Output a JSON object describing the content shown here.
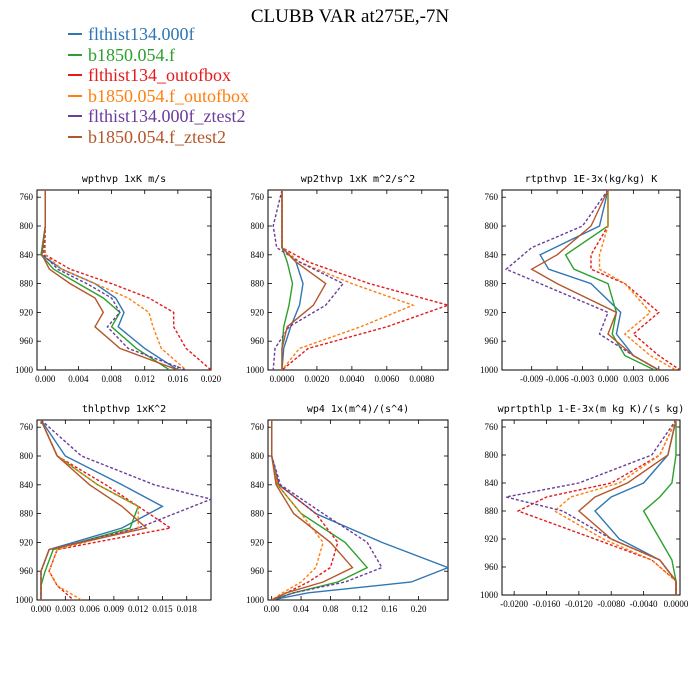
{
  "title": "CLUBB VAR at275E,-7N",
  "legend": [
    {
      "name": "flthist134.000f",
      "color": "#2f77b4",
      "dash": "solid"
    },
    {
      "name": "b1850.054.f",
      "color": "#2ca02c",
      "dash": "solid"
    },
    {
      "name": "flthist134_outofbox",
      "color": "#e41a1c",
      "dash": "dashed"
    },
    {
      "name": "b1850.054.f_outofbox",
      "color": "#ff7f0e",
      "dash": "dashed"
    },
    {
      "name": "flthist134.000f_ztest2",
      "color": "#6a3d9a",
      "dash": "dashed"
    },
    {
      "name": "b1850.054.f_ztest2",
      "color": "#b5562a",
      "dash": "solid"
    }
  ],
  "chart_data": [
    {
      "type": "line",
      "title": "wpthvp  1xK m/s",
      "xlim": [
        -0.001,
        0.02
      ],
      "ylim": [
        1000,
        750
      ],
      "xticks": [
        "0.000",
        "0.004",
        "0.008",
        "0.012",
        "0.016",
        "0.020"
      ],
      "xtick_values": [
        0,
        0.004,
        0.008,
        0.012,
        0.016,
        0.02
      ],
      "yticks": [
        760,
        800,
        840,
        880,
        920,
        960,
        1000
      ],
      "series": [
        {
          "name": "flthist134.000f",
          "x": [
            0,
            0,
            -0.0005,
            0.002,
            0.006,
            0.0085,
            0.0095,
            0.0088,
            0.012,
            0.016
          ],
          "y": [
            750,
            800,
            840,
            860,
            880,
            900,
            920,
            940,
            970,
            1000
          ]
        },
        {
          "name": "b1850.054.f",
          "x": [
            0,
            0,
            -0.0005,
            0.001,
            0.004,
            0.007,
            0.009,
            0.008,
            0.011,
            0.015
          ],
          "y": [
            750,
            800,
            840,
            860,
            880,
            900,
            920,
            940,
            970,
            1000
          ]
        },
        {
          "name": "flthist134_outofbox",
          "x": [
            0,
            0,
            0,
            0.003,
            0.008,
            0.0125,
            0.0155,
            0.0155,
            0.017,
            0.02
          ],
          "y": [
            750,
            800,
            840,
            860,
            880,
            900,
            920,
            940,
            970,
            1000
          ]
        },
        {
          "name": "b1850.054.f_outofbox",
          "x": [
            0,
            0,
            0,
            0.002,
            0.006,
            0.01,
            0.0125,
            0.013,
            0.014,
            0.017
          ],
          "y": [
            750,
            800,
            840,
            860,
            880,
            900,
            920,
            940,
            970,
            1000
          ]
        },
        {
          "name": "flthist134.000f_ztest2",
          "x": [
            0,
            0,
            -0.0002,
            0.0015,
            0.005,
            0.008,
            0.009,
            0.0075,
            0.01,
            0.017
          ],
          "y": [
            750,
            800,
            840,
            860,
            880,
            900,
            920,
            940,
            970,
            1000
          ]
        },
        {
          "name": "b1850.054.f_ztest2",
          "x": [
            0,
            0,
            -0.0004,
            0.0005,
            0.003,
            0.006,
            0.007,
            0.006,
            0.009,
            0.016
          ],
          "y": [
            750,
            800,
            840,
            860,
            880,
            900,
            920,
            940,
            970,
            1000
          ]
        }
      ]
    },
    {
      "type": "line",
      "title": "wp2thvp  1xK m^2/s^2",
      "xlim": [
        -0.0008,
        0.0095
      ],
      "ylim": [
        1000,
        750
      ],
      "xticks": [
        "0.0000",
        "0.0020",
        "0.0040",
        "0.0060",
        "0.0080"
      ],
      "xtick_values": [
        0,
        0.002,
        0.004,
        0.006,
        0.008
      ],
      "yticks": [
        760,
        800,
        840,
        880,
        920,
        960,
        1000
      ],
      "series": [
        {
          "name": "flthist134.000f",
          "x": [
            0,
            0,
            0,
            0.0008,
            0.0012,
            0.001,
            0.0005,
            0.0001,
            0
          ],
          "y": [
            750,
            800,
            830,
            850,
            880,
            910,
            940,
            970,
            1000
          ]
        },
        {
          "name": "b1850.054.f",
          "x": [
            0,
            0,
            0,
            0.0003,
            0.0006,
            0.0004,
            0.0001,
            0,
            0
          ],
          "y": [
            750,
            800,
            830,
            850,
            880,
            910,
            940,
            970,
            1000
          ]
        },
        {
          "name": "flthist134_outofbox",
          "x": [
            0,
            0,
            0,
            0.0015,
            0.005,
            0.0095,
            0.006,
            0.0015,
            0
          ],
          "y": [
            750,
            800,
            830,
            850,
            880,
            910,
            940,
            970,
            1000
          ]
        },
        {
          "name": "b1850.054.f_outofbox",
          "x": [
            0,
            0,
            0,
            0.001,
            0.004,
            0.0075,
            0.0045,
            0.001,
            0
          ],
          "y": [
            750,
            800,
            830,
            850,
            880,
            910,
            940,
            970,
            1000
          ]
        },
        {
          "name": "flthist134.000f_ztest2",
          "x": [
            0,
            -0.0005,
            -0.0003,
            0.001,
            0.0035,
            0.0025,
            0.0004,
            -0.0004,
            -0.0005
          ],
          "y": [
            750,
            800,
            830,
            850,
            880,
            910,
            940,
            970,
            1000
          ]
        },
        {
          "name": "b1850.054.f_ztest2",
          "x": [
            0,
            0,
            0,
            0.0008,
            0.0025,
            0.0018,
            0.0003,
            0,
            0
          ],
          "y": [
            750,
            800,
            830,
            850,
            880,
            910,
            940,
            970,
            1000
          ]
        }
      ]
    },
    {
      "type": "line",
      "title": "rtpthvp  1E-3x(kg/kg) K",
      "xlim": [
        -0.0125,
        0.0085
      ],
      "ylim": [
        1000,
        750
      ],
      "xticks": [
        "-0.009",
        "-0.006",
        "-0.003",
        "0.000",
        "0.003",
        "0.006"
      ],
      "xtick_values": [
        -0.009,
        -0.006,
        -0.003,
        0,
        0.003,
        0.006
      ],
      "yticks": [
        760,
        800,
        840,
        880,
        920,
        960,
        1000
      ],
      "series": [
        {
          "name": "flthist134.000f",
          "x": [
            0,
            -0.001,
            -0.008,
            -0.007,
            -0.002,
            0.0015,
            0.001,
            0.003,
            0.006
          ],
          "y": [
            750,
            800,
            840,
            860,
            880,
            920,
            950,
            980,
            1000
          ]
        },
        {
          "name": "b1850.054.f",
          "x": [
            0,
            0,
            -0.005,
            -0.004,
            0,
            0.001,
            0.0005,
            0.002,
            0.0055
          ],
          "y": [
            750,
            800,
            840,
            860,
            880,
            920,
            950,
            980,
            1000
          ]
        },
        {
          "name": "flthist134_outofbox",
          "x": [
            0,
            0,
            -0.002,
            -0.002,
            0.002,
            0.006,
            0.003,
            0.006,
            0.0085
          ],
          "y": [
            750,
            800,
            840,
            860,
            880,
            920,
            950,
            980,
            1000
          ]
        },
        {
          "name": "b1850.054.f_outofbox",
          "x": [
            0,
            0,
            -0.001,
            -0.001,
            0.002,
            0.005,
            0.002,
            0.005,
            0.008
          ],
          "y": [
            750,
            800,
            840,
            860,
            880,
            920,
            950,
            980,
            1000
          ]
        },
        {
          "name": "flthist134.000f_ztest2",
          "x": [
            0,
            -0.003,
            -0.009,
            -0.012,
            -0.008,
            0,
            -0.001,
            0.003,
            0.006
          ],
          "y": [
            750,
            800,
            830,
            860,
            880,
            920,
            950,
            980,
            1000
          ]
        },
        {
          "name": "b1850.054.f_ztest2",
          "x": [
            0,
            -0.002,
            -0.006,
            -0.009,
            -0.006,
            0.001,
            0,
            0.003,
            0.006
          ],
          "y": [
            750,
            800,
            840,
            860,
            880,
            920,
            950,
            980,
            1000
          ]
        }
      ]
    },
    {
      "type": "line",
      "title": "thlpthvp  1xK^2",
      "xlim": [
        -0.0005,
        0.021
      ],
      "ylim": [
        1000,
        750
      ],
      "xticks": [
        "0.000",
        "0.003",
        "0.006",
        "0.009",
        "0.012",
        "0.015",
        "0.018"
      ],
      "xtick_values": [
        0,
        0.003,
        0.006,
        0.009,
        0.012,
        0.015,
        0.018
      ],
      "yticks": [
        760,
        800,
        840,
        880,
        920,
        960,
        1000
      ],
      "series": [
        {
          "name": "flthist134.000f",
          "x": [
            0,
            0.003,
            0.01,
            0.015,
            0.01,
            0.001,
            0,
            0,
            0
          ],
          "y": [
            750,
            800,
            840,
            870,
            900,
            930,
            960,
            980,
            1000
          ]
        },
        {
          "name": "b1850.054.f",
          "x": [
            0,
            0.002,
            0.007,
            0.012,
            0.011,
            0.0015,
            0.0005,
            0,
            0
          ],
          "y": [
            750,
            800,
            840,
            870,
            900,
            930,
            960,
            980,
            1000
          ]
        },
        {
          "name": "flthist134_outofbox",
          "x": [
            0,
            0.002,
            0.008,
            0.012,
            0.016,
            0.002,
            0.001,
            0.002,
            0.004
          ],
          "y": [
            750,
            800,
            840,
            870,
            900,
            930,
            960,
            980,
            1000
          ]
        },
        {
          "name": "b1850.054.f_outofbox",
          "x": [
            0,
            0.002,
            0.007,
            0.012,
            0.012,
            0.002,
            0.001,
            0.002,
            0.005
          ],
          "y": [
            750,
            800,
            840,
            870,
            900,
            930,
            960,
            980,
            1000
          ]
        },
        {
          "name": "flthist134.000f_ztest2",
          "x": [
            0,
            0.005,
            0.014,
            0.021,
            0.012,
            0.001,
            0,
            0,
            0
          ],
          "y": [
            750,
            800,
            840,
            860,
            900,
            930,
            960,
            980,
            1000
          ]
        },
        {
          "name": "b1850.054.f_ztest2",
          "x": [
            0,
            0.002,
            0.006,
            0.01,
            0.013,
            0.001,
            0,
            0,
            0
          ],
          "y": [
            750,
            800,
            840,
            870,
            900,
            930,
            960,
            980,
            1000
          ]
        }
      ]
    },
    {
      "type": "line",
      "title": "wp4  1x(m^4)/(s^4)",
      "xlim": [
        -0.005,
        0.24
      ],
      "ylim": [
        1000,
        750
      ],
      "xticks": [
        "0.00",
        "0.04",
        "0.08",
        "0.12",
        "0.16",
        "0.20"
      ],
      "xtick_values": [
        0,
        0.04,
        0.08,
        0.12,
        0.16,
        0.2
      ],
      "yticks": [
        760,
        800,
        840,
        880,
        920,
        960,
        1000
      ],
      "series": [
        {
          "name": "flthist134.000f",
          "x": [
            0,
            0,
            0.01,
            0.06,
            0.15,
            0.24,
            0.19,
            0.05,
            0
          ],
          "y": [
            750,
            800,
            840,
            880,
            920,
            955,
            975,
            990,
            1000
          ]
        },
        {
          "name": "b1850.054.f",
          "x": [
            0,
            0,
            0.008,
            0.04,
            0.1,
            0.13,
            0.09,
            0.03,
            0
          ],
          "y": [
            750,
            800,
            840,
            880,
            920,
            955,
            975,
            990,
            1000
          ]
        },
        {
          "name": "flthist134_outofbox",
          "x": [
            0,
            0,
            0.01,
            0.06,
            0.09,
            0.08,
            0.05,
            0.02,
            0
          ],
          "y": [
            750,
            800,
            840,
            880,
            920,
            955,
            975,
            990,
            1000
          ]
        },
        {
          "name": "b1850.054.f_outofbox",
          "x": [
            0,
            0,
            0.008,
            0.04,
            0.07,
            0.06,
            0.04,
            0.015,
            0
          ],
          "y": [
            750,
            800,
            840,
            880,
            920,
            955,
            975,
            990,
            1000
          ]
        },
        {
          "name": "flthist134.000f_ztest2",
          "x": [
            0,
            0,
            0.012,
            0.07,
            0.13,
            0.15,
            0.1,
            0.03,
            0
          ],
          "y": [
            750,
            800,
            840,
            880,
            920,
            955,
            975,
            990,
            1000
          ]
        },
        {
          "name": "b1850.054.f_ztest2",
          "x": [
            0,
            0,
            0.006,
            0.03,
            0.08,
            0.11,
            0.07,
            0.02,
            0
          ],
          "y": [
            750,
            800,
            840,
            880,
            920,
            955,
            975,
            990,
            1000
          ]
        }
      ]
    },
    {
      "type": "line",
      "title": "wprtpthlp  1-E-3x(m kg K)/(s kg)",
      "xlim": [
        -0.0215,
        0.0005
      ],
      "ylim": [
        1000,
        750
      ],
      "xticks": [
        "-0.0200",
        "-0.0160",
        "-0.0120",
        "-0.0080",
        "-0.0040",
        "0.0000"
      ],
      "xtick_values": [
        -0.02,
        -0.016,
        -0.012,
        -0.008,
        -0.004,
        0
      ],
      "yticks": [
        760,
        800,
        840,
        880,
        920,
        960,
        1000
      ],
      "series": [
        {
          "name": "flthist134.000f",
          "x": [
            0,
            -0.001,
            -0.004,
            -0.008,
            -0.01,
            -0.007,
            -0.002,
            0,
            0
          ],
          "y": [
            750,
            800,
            840,
            860,
            880,
            920,
            950,
            980,
            1000
          ]
        },
        {
          "name": "b1850.054.f",
          "x": [
            0,
            0,
            -0.0005,
            -0.002,
            -0.004,
            -0.002,
            -0.0005,
            0,
            0
          ],
          "y": [
            750,
            800,
            840,
            860,
            880,
            920,
            950,
            980,
            1000
          ]
        },
        {
          "name": "flthist134_outofbox",
          "x": [
            0,
            -0.002,
            -0.008,
            -0.016,
            -0.0195,
            -0.01,
            -0.003,
            0,
            0
          ],
          "y": [
            750,
            800,
            840,
            860,
            880,
            920,
            950,
            980,
            1000
          ]
        },
        {
          "name": "b1850.054.f_outofbox",
          "x": [
            0,
            -0.002,
            -0.007,
            -0.013,
            -0.015,
            -0.009,
            -0.003,
            0,
            0
          ],
          "y": [
            750,
            800,
            840,
            860,
            880,
            920,
            950,
            980,
            1000
          ]
        },
        {
          "name": "flthist134.000f_ztest2",
          "x": [
            0,
            -0.003,
            -0.012,
            -0.021,
            -0.014,
            -0.008,
            -0.002,
            0,
            0
          ],
          "y": [
            750,
            800,
            840,
            860,
            880,
            920,
            950,
            980,
            1000
          ]
        },
        {
          "name": "b1850.054.f_ztest2",
          "x": [
            0,
            -0.001,
            -0.006,
            -0.01,
            -0.012,
            -0.008,
            -0.002,
            0,
            0
          ],
          "y": [
            750,
            800,
            840,
            860,
            880,
            920,
            950,
            980,
            1000
          ]
        }
      ]
    }
  ]
}
